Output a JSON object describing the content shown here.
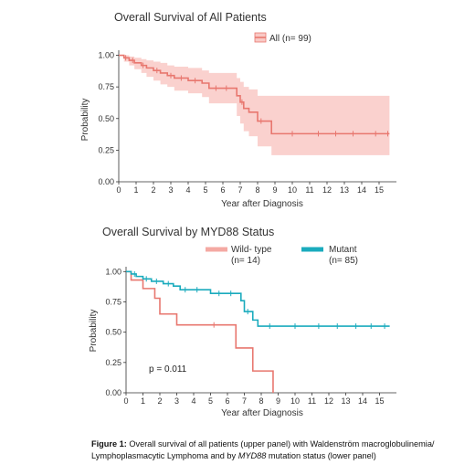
{
  "chart_data": [
    {
      "type": "line",
      "subtype": "kaplan-meier",
      "title": "Overall Survival of All Patients",
      "xlabel": "Year after Diagnosis",
      "ylabel": "Probability",
      "xlim": [
        0,
        16
      ],
      "ylim": [
        0,
        1.04
      ],
      "x_ticks": [
        "0",
        "1",
        "2",
        "3",
        "4",
        "5",
        "6",
        "7",
        "8",
        "9",
        "10",
        "11",
        "12",
        "13",
        "14",
        "15"
      ],
      "y_ticks": [
        "0.00",
        "0.25",
        "0.50",
        "0.75",
        "1.00"
      ],
      "legend_position": "top-right",
      "series": [
        {
          "name": "All (n= 99)",
          "color": "#e8776f",
          "band_color": "#f9c9c5",
          "steps": [
            [
              0,
              1.0
            ],
            [
              0.3,
              0.98
            ],
            [
              0.6,
              0.96
            ],
            [
              0.9,
              0.94
            ],
            [
              1.3,
              0.92
            ],
            [
              1.6,
              0.9
            ],
            [
              2.0,
              0.88
            ],
            [
              2.4,
              0.86
            ],
            [
              2.8,
              0.84
            ],
            [
              3.2,
              0.82
            ],
            [
              4.0,
              0.8
            ],
            [
              4.8,
              0.78
            ],
            [
              5.2,
              0.74
            ],
            [
              6.8,
              0.68
            ],
            [
              7.0,
              0.63
            ],
            [
              7.2,
              0.58
            ],
            [
              7.5,
              0.55
            ],
            [
              8.0,
              0.48
            ],
            [
              8.8,
              0.38
            ]
          ],
          "x_end": 15.6,
          "censor_x": [
            0.4,
            0.8,
            1.4,
            2.2,
            3.0,
            3.6,
            4.4,
            5.6,
            6.2,
            7.1,
            8.2,
            10.0,
            11.5,
            12.5,
            13.5,
            14.8,
            15.5
          ],
          "ci_upper": [
            [
              0,
              1.0
            ],
            [
              0.3,
              1.0
            ],
            [
              0.6,
              0.99
            ],
            [
              0.9,
              0.98
            ],
            [
              1.3,
              0.97
            ],
            [
              1.6,
              0.96
            ],
            [
              2.0,
              0.95
            ],
            [
              2.4,
              0.94
            ],
            [
              2.8,
              0.92
            ],
            [
              3.2,
              0.91
            ],
            [
              4.0,
              0.9
            ],
            [
              4.8,
              0.88
            ],
            [
              5.2,
              0.86
            ],
            [
              6.8,
              0.82
            ],
            [
              7.0,
              0.79
            ],
            [
              7.2,
              0.75
            ],
            [
              7.5,
              0.73
            ],
            [
              8.0,
              0.68
            ],
            [
              8.8,
              0.68
            ]
          ],
          "ci_lower": [
            [
              0,
              1.0
            ],
            [
              0.3,
              0.95
            ],
            [
              0.6,
              0.92
            ],
            [
              0.9,
              0.89
            ],
            [
              1.3,
              0.86
            ],
            [
              1.6,
              0.83
            ],
            [
              2.0,
              0.8
            ],
            [
              2.4,
              0.77
            ],
            [
              2.8,
              0.75
            ],
            [
              3.2,
              0.72
            ],
            [
              4.0,
              0.7
            ],
            [
              4.8,
              0.67
            ],
            [
              5.2,
              0.62
            ],
            [
              6.8,
              0.52
            ],
            [
              7.0,
              0.46
            ],
            [
              7.2,
              0.4
            ],
            [
              7.5,
              0.36
            ],
            [
              8.0,
              0.28
            ],
            [
              8.8,
              0.21
            ]
          ]
        }
      ]
    },
    {
      "type": "line",
      "subtype": "kaplan-meier",
      "title": "Overall Survival by MYD88 Status",
      "xlabel": "Year after Diagnosis",
      "ylabel": "Probability",
      "xlim": [
        0,
        16
      ],
      "ylim": [
        0,
        1.04
      ],
      "x_ticks": [
        "0",
        "1",
        "2",
        "3",
        "4",
        "5",
        "6",
        "7",
        "8",
        "9",
        "10",
        "11",
        "12",
        "13",
        "14",
        "15"
      ],
      "y_ticks": [
        "0.00",
        "0.25",
        "0.50",
        "0.75",
        "1.00"
      ],
      "annotation": "p = 0.011",
      "legend_position": "top",
      "series": [
        {
          "name_line1": "Wild- type",
          "name_line2": "(n= 14)",
          "color": "#e8776f",
          "steps": [
            [
              0,
              1.0
            ],
            [
              0.3,
              0.93
            ],
            [
              1.0,
              0.86
            ],
            [
              1.7,
              0.78
            ],
            [
              2.0,
              0.65
            ],
            [
              3.0,
              0.56
            ],
            [
              6.5,
              0.37
            ],
            [
              7.5,
              0.18
            ],
            [
              8.7,
              0.0
            ]
          ],
          "x_end": 8.7,
          "censor_x": [
            5.2
          ]
        },
        {
          "name_line1": "Mutant",
          "name_line2": "(n= 85)",
          "color": "#1aabbd",
          "steps": [
            [
              0,
              1.0
            ],
            [
              0.3,
              0.98
            ],
            [
              0.6,
              0.96
            ],
            [
              1.0,
              0.94
            ],
            [
              1.5,
              0.92
            ],
            [
              2.2,
              0.9
            ],
            [
              2.8,
              0.88
            ],
            [
              3.2,
              0.85
            ],
            [
              5.0,
              0.82
            ],
            [
              6.8,
              0.76
            ],
            [
              7.0,
              0.67
            ],
            [
              7.5,
              0.6
            ],
            [
              7.8,
              0.55
            ]
          ],
          "x_end": 15.6,
          "censor_x": [
            0.5,
            1.2,
            1.8,
            2.5,
            3.5,
            4.2,
            5.5,
            6.2,
            7.2,
            8.5,
            10.0,
            11.4,
            12.5,
            13.6,
            14.5,
            15.3
          ]
        }
      ]
    }
  ],
  "caption": {
    "label": "Figure 1:",
    "part1": " Overall survival of all patients (upper panel) with Waldenström macroglobulinemia/ Lymphoplasmacytic Lymphoma and by ",
    "gene": "MYD88",
    "part2": " mutation status (lower panel)"
  }
}
